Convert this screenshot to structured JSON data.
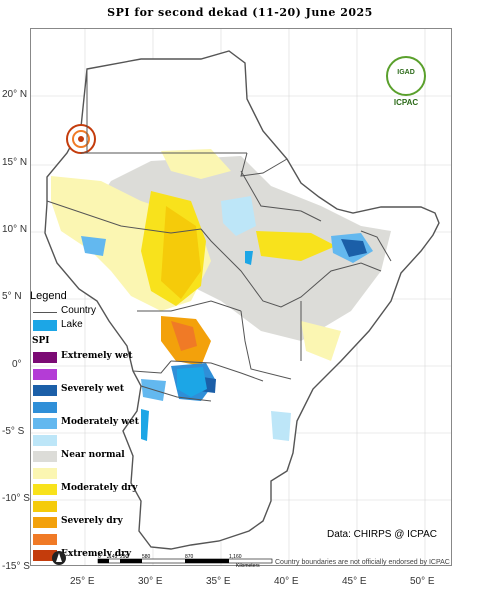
{
  "map": {
    "title": "SPI  for   second  dekad (11-20)  June 2025",
    "lat_ticks": [
      "20° N",
      "15° N",
      "10° N",
      "5° N",
      "0°",
      "-5° S",
      "-10° S",
      "-15° S"
    ],
    "lon_ticks": [
      "25° E",
      "30° E",
      "35° E",
      "40° E",
      "45° E",
      "50° E"
    ],
    "data_source": "Data: CHIRPS @ ICPAC",
    "disclaimer": "Country boundaries are not officially endorsed by ICPAC",
    "scale_labels": [
      "0",
      "145",
      "290",
      "580",
      "870",
      "1,160"
    ],
    "scale_unit": "Kilometers",
    "logo": {
      "top_text": "IGAD",
      "bottom_text": "ICPAC"
    },
    "colors": {
      "ocean": "#ffffff",
      "land": "#ffffff",
      "country_border": "#555555",
      "lake": "#1ca6e6"
    }
  },
  "legend": {
    "title": "Legend",
    "country_label": "Country",
    "lake_label": "Lake",
    "spi_heading": "SPI",
    "classes": [
      {
        "label": "Extremely wet",
        "color": "#7b0a74"
      },
      {
        "label": "",
        "color": "#b43cd6"
      },
      {
        "label": "Severely wet",
        "color": "#1b5fa8"
      },
      {
        "label": "",
        "color": "#2f8fd8"
      },
      {
        "label": "Moderately wet",
        "color": "#63b8ef"
      },
      {
        "label": "",
        "color": "#bde6f8"
      },
      {
        "label": "Near normal",
        "color": "#dcdcd8"
      },
      {
        "label": "",
        "color": "#fbf6b2"
      },
      {
        "label": "Moderately dry",
        "color": "#f8e21c"
      },
      {
        "label": "",
        "color": "#f5cb0a"
      },
      {
        "label": "Severely dry",
        "color": "#f3a10b"
      },
      {
        "label": "",
        "color": "#f07a26"
      },
      {
        "label": "Extremely dry",
        "color": "#c43c0c"
      }
    ]
  }
}
